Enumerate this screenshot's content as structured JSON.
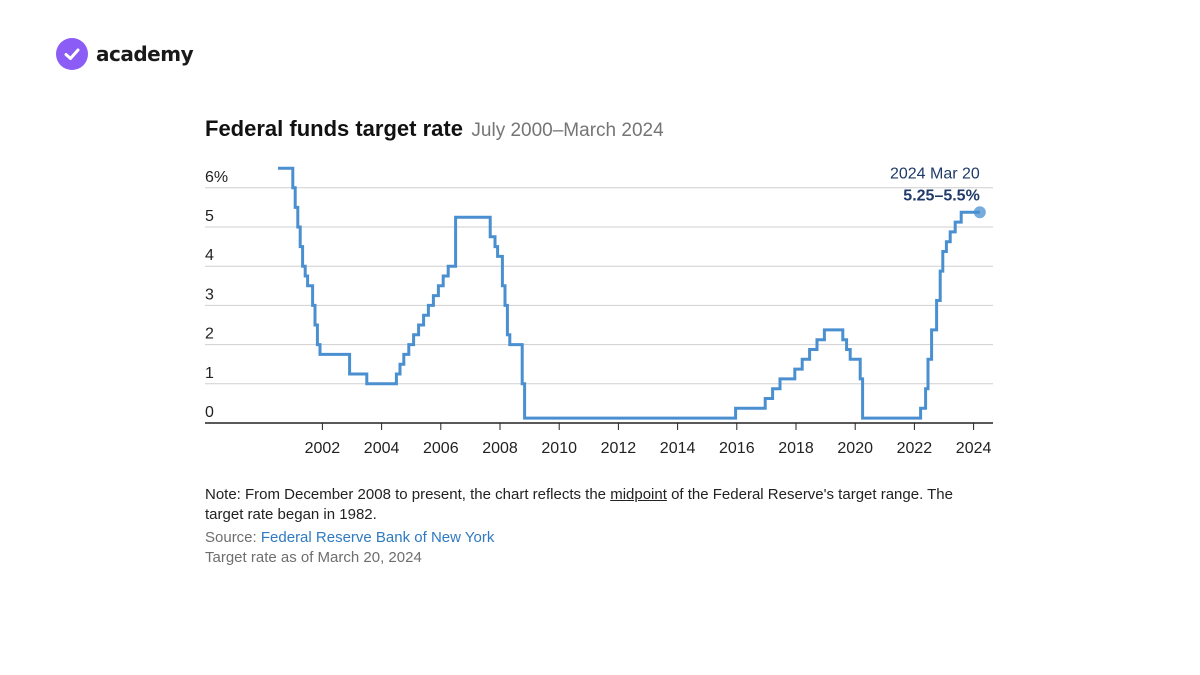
{
  "brand": {
    "name": "academy",
    "accent": "#8b5cf6"
  },
  "title": "Federal funds target rate",
  "subtitle": "July 2000–March 2024",
  "note": {
    "before": "Note: From December 2008 to present, the chart reflects the ",
    "underlined": "midpoint",
    "after": " of the Federal Reserve's target range. The target rate began in 1982."
  },
  "source": {
    "label": "Source: ",
    "link_text": "Federal Reserve Bank of New York"
  },
  "as_of": "Target rate as of March 20, 2024",
  "chart_data": {
    "type": "line",
    "step": true,
    "line_color": "#4a8fd0",
    "y_tick_labels": [
      "0",
      "1",
      "2",
      "3",
      "4",
      "5",
      "6%"
    ],
    "x_tick_labels": [
      "2002",
      "2004",
      "2006",
      "2008",
      "2010",
      "2012",
      "2014",
      "2016",
      "2018",
      "2020",
      "2022",
      "2024"
    ],
    "xlim": [
      2000.5,
      2024.3
    ],
    "ylim": [
      0,
      6.5
    ],
    "grid": true,
    "annotation": {
      "date": "2024 Mar 20",
      "value": "5.25–5.5%"
    },
    "x": [
      2000.5,
      2001.0,
      2001.08,
      2001.17,
      2001.25,
      2001.33,
      2001.42,
      2001.5,
      2001.67,
      2001.75,
      2001.83,
      2001.92,
      2002.92,
      2003.5,
      2004.5,
      2004.62,
      2004.75,
      2004.92,
      2005.08,
      2005.25,
      2005.42,
      2005.58,
      2005.75,
      2005.92,
      2006.08,
      2006.25,
      2006.5,
      2007.67,
      2007.83,
      2007.92,
      2008.08,
      2008.17,
      2008.25,
      2008.33,
      2008.75,
      2008.83,
      2008.96,
      2015.96,
      2016.96,
      2017.21,
      2017.46,
      2017.96,
      2018.21,
      2018.46,
      2018.71,
      2018.96,
      2019.58,
      2019.71,
      2019.83,
      2020.17,
      2020.25,
      2022.21,
      2022.38,
      2022.46,
      2022.58,
      2022.75,
      2022.87,
      2022.96,
      2023.08,
      2023.21,
      2023.38,
      2023.58,
      2024.21
    ],
    "y": [
      6.5,
      6.0,
      5.5,
      5.0,
      4.5,
      4.0,
      3.75,
      3.5,
      3.0,
      2.5,
      2.0,
      1.75,
      1.25,
      1.0,
      1.25,
      1.5,
      1.75,
      2.0,
      2.25,
      2.5,
      2.75,
      3.0,
      3.25,
      3.5,
      3.75,
      4.0,
      5.25,
      4.75,
      4.5,
      4.25,
      3.5,
      3.0,
      2.25,
      2.0,
      1.0,
      0.125,
      0.125,
      0.375,
      0.625,
      0.875,
      1.125,
      1.375,
      1.625,
      1.875,
      2.125,
      2.375,
      2.125,
      1.875,
      1.625,
      1.125,
      0.125,
      0.375,
      0.875,
      1.625,
      2.375,
      3.125,
      3.875,
      4.375,
      4.625,
      4.875,
      5.125,
      5.375,
      5.375
    ]
  }
}
